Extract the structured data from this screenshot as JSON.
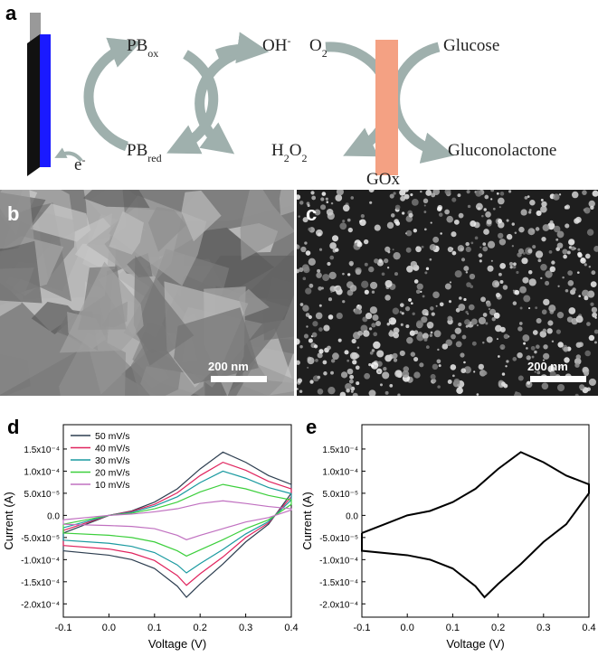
{
  "diagram": {
    "label": "a",
    "pb_ox": {
      "base": "PB",
      "sub": "ox"
    },
    "pb_red": {
      "base": "PB",
      "sub": "red"
    },
    "oh": {
      "base": "OH",
      "sup": "-"
    },
    "o2": {
      "base": "O",
      "sub": "2"
    },
    "h2o2": [
      "H",
      "2",
      "O",
      "2"
    ],
    "electron": {
      "base": "e",
      "sup": "-"
    },
    "glucose": "Glucose",
    "gluconolactone": "Gluconolactone",
    "enzyme": "GOx"
  },
  "images": [
    {
      "label": "b",
      "scale_bar": "200 nm"
    },
    {
      "label": "c",
      "scale_bar": "200 nm"
    }
  ],
  "chart_data": [
    {
      "type": "line",
      "panel_label": "d",
      "xlabel": "Voltage (V)",
      "ylabel": "Current (A)",
      "xlim": [
        -0.1,
        0.4
      ],
      "ylim": [
        -0.00023,
        0.000205
      ],
      "xticks": [
        -0.1,
        {
          "value": 0,
          "label": "0.0"
        },
        0.1,
        0.2,
        0.3,
        0.4
      ],
      "yticks": [
        {
          "value": 0.00015,
          "label": "1.5x10⁻⁴"
        },
        {
          "value": 0.0001,
          "label": "1.0x10⁻⁴"
        },
        {
          "value": 5e-05,
          "label": "5.0x10⁻⁵"
        },
        {
          "value": 0,
          "label": "0.0"
        },
        {
          "value": -5e-05,
          "label": "-5.0x10⁻⁵"
        },
        {
          "value": -0.0001,
          "label": "-1.0x10⁻⁴"
        },
        {
          "value": -0.00015,
          "label": "-1.5x10⁻⁴"
        },
        {
          "value": -0.0002,
          "label": "-2.0x10⁻⁴"
        }
      ],
      "legend": "upper left",
      "x": [
        -0.1,
        -0.05,
        0,
        0.05,
        0.1,
        0.15,
        0.2,
        0.25,
        0.3,
        0.35,
        0.4,
        0.4,
        0.35,
        0.3,
        0.25,
        0.2,
        0.17,
        0.15,
        0.1,
        0.05,
        0,
        -0.1,
        -0.1
      ],
      "series": [
        {
          "name": "50 mV/s",
          "color": "#2d3e50",
          "values": [
            -4e-05,
            -2e-05,
            0,
            1e-05,
            3e-05,
            6e-05,
            0.000105,
            0.000143,
            0.00012,
            9e-05,
            7e-05,
            5e-05,
            -2e-05,
            -6e-05,
            -0.00011,
            -0.000155,
            -0.000185,
            -0.00016,
            -0.00012,
            -0.0001,
            -9e-05,
            -8e-05,
            -4e-05
          ]
        },
        {
          "name": "40 mV/s",
          "color": "#e0245e",
          "values": [
            -3.4e-05,
            -1.7e-05,
            0,
            9e-06,
            2.5e-05,
            5.1e-05,
            9e-05,
            0.00012,
            0.000102,
            7.7e-05,
            6e-05,
            4.2e-05,
            -1.7e-05,
            -5e-05,
            -9.4e-05,
            -0.000132,
            -0.000158,
            -0.000136,
            -0.000102,
            -8.5e-05,
            -7.6e-05,
            -6.8e-05,
            -3.4e-05
          ]
        },
        {
          "name": "30 mV/s",
          "color": "#1a9aa0",
          "values": [
            -2.8e-05,
            -1.4e-05,
            0,
            7e-06,
            2.1e-05,
            4.2e-05,
            7.4e-05,
            0.0001,
            8.4e-05,
            6.3e-05,
            4.9e-05,
            3.5e-05,
            -1.4e-05,
            -4.2e-05,
            -7.7e-05,
            -0.000109,
            -0.00013,
            -0.000112,
            -8.4e-05,
            -7e-05,
            -6.3e-05,
            -5.6e-05,
            -2.8e-05
          ]
        },
        {
          "name": "20 mV/s",
          "color": "#3ccf3c",
          "values": [
            -2e-05,
            -1e-05,
            0,
            5e-06,
            1.5e-05,
            3e-05,
            5.3e-05,
            7e-05,
            6e-05,
            4.5e-05,
            3.5e-05,
            2.5e-05,
            -1e-05,
            -3e-05,
            -5.5e-05,
            -7.8e-05,
            -9.2e-05,
            -8e-05,
            -6e-05,
            -5e-05,
            -4.5e-05,
            -4e-05,
            -2e-05
          ]
        },
        {
          "name": "10 mV/s",
          "color": "#c070c0",
          "values": [
            -1e-05,
            -5e-06,
            0,
            3e-06,
            8e-06,
            1.5e-05,
            2.7e-05,
            3.3e-05,
            2.7e-05,
            2e-05,
            1.5e-05,
            1.2e-05,
            -5e-06,
            -1.5e-05,
            -3e-05,
            -4.5e-05,
            -5.5e-05,
            -4.5e-05,
            -3e-05,
            -2.5e-05,
            -2.3e-05,
            -2e-05,
            -1e-05
          ]
        }
      ]
    },
    {
      "type": "line",
      "panel_label": "e",
      "xlabel": "Voltage (V)",
      "ylabel": "Current (A)",
      "xlim": [
        -0.1,
        0.4
      ],
      "ylim": [
        -0.00023,
        0.000205
      ],
      "xticks": [
        -0.1,
        {
          "value": 0,
          "label": "0.0"
        },
        0.1,
        0.2,
        0.3,
        0.4
      ],
      "yticks": [
        {
          "value": 0.00015,
          "label": "1.5x10⁻⁴"
        },
        {
          "value": 0.0001,
          "label": "1.0x10⁻⁴"
        },
        {
          "value": 5e-05,
          "label": "5.0x10⁻⁵"
        },
        {
          "value": 0,
          "label": "0.0"
        },
        {
          "value": -5e-05,
          "label": "-5.0x10⁻⁵"
        },
        {
          "value": -0.0001,
          "label": "-1.0x10⁻⁴"
        },
        {
          "value": -0.00015,
          "label": "-1.5x10⁻⁴"
        },
        {
          "value": -0.0002,
          "label": "-2.0x10⁻⁴"
        }
      ],
      "x": [
        -0.1,
        -0.05,
        0,
        0.05,
        0.1,
        0.15,
        0.2,
        0.25,
        0.3,
        0.35,
        0.4,
        0.4,
        0.35,
        0.3,
        0.25,
        0.2,
        0.17,
        0.15,
        0.1,
        0.05,
        0,
        -0.1,
        -0.1
      ],
      "series": [
        {
          "color": "#000000",
          "values": [
            -4e-05,
            -2e-05,
            0,
            1e-05,
            3e-05,
            6e-05,
            0.000105,
            0.000143,
            0.00012,
            9e-05,
            7e-05,
            5e-05,
            -2e-05,
            -6e-05,
            -0.00011,
            -0.000155,
            -0.000185,
            -0.00016,
            -0.00012,
            -0.0001,
            -9e-05,
            -8e-05,
            -4e-05
          ]
        }
      ]
    }
  ]
}
